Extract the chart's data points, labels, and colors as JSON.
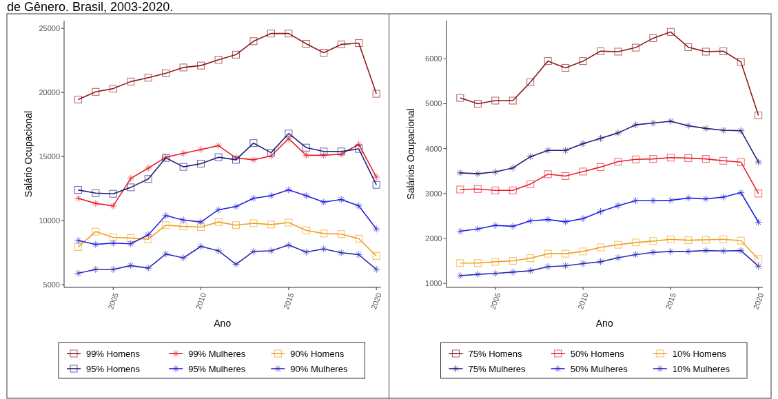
{
  "chart_data": [
    {
      "type": "line",
      "title": "de Gênero. Brasil, 2003-2020.",
      "xlabel": "Ano",
      "ylabel": "Salário Ocupacional",
      "x": [
        2003,
        2004,
        2005,
        2006,
        2007,
        2008,
        2009,
        2010,
        2011,
        2012,
        2013,
        2014,
        2015,
        2016,
        2017,
        2018,
        2019,
        2020
      ],
      "xlim": [
        2002.2,
        2020.25
      ],
      "xticks": [
        2005,
        2010,
        2015,
        2020
      ],
      "ylim": [
        4800,
        25600
      ],
      "yticks": [
        5000,
        10000,
        15000,
        20000,
        25000
      ],
      "grid": false,
      "legend": "bottom",
      "line_style": "solid",
      "series": [
        {
          "name": "99% Homens",
          "color": "#8b1a1a",
          "marker": "square",
          "values": [
            19450,
            20050,
            20300,
            20850,
            21150,
            21500,
            21950,
            22100,
            22550,
            22950,
            24000,
            24600,
            24600,
            23800,
            23100,
            23750,
            23850,
            19900
          ]
        },
        {
          "name": "99% Mulheres",
          "color": "#e8202a",
          "marker": "cross",
          "values": [
            11750,
            11350,
            11150,
            13300,
            14100,
            14950,
            15250,
            15550,
            15850,
            14900,
            14750,
            15050,
            16400,
            15100,
            15100,
            15200,
            15950,
            13400
          ]
        },
        {
          "name": "90% Homens",
          "color": "#f0a020",
          "marker": "square",
          "values": [
            7950,
            9150,
            8700,
            8650,
            8550,
            9650,
            9550,
            9500,
            9900,
            9650,
            9800,
            9700,
            9850,
            9250,
            9000,
            8950,
            8600,
            7250
          ]
        },
        {
          "name": "95% Homens",
          "color": "#1f1f7a",
          "marker": "square",
          "values": [
            12400,
            12150,
            12100,
            12600,
            13250,
            14900,
            14200,
            14450,
            14950,
            14750,
            16050,
            15300,
            16800,
            15700,
            15400,
            15400,
            15600,
            12800
          ]
        },
        {
          "name": "95% Mulheres",
          "color": "#2020e0",
          "marker": "cross",
          "values": [
            8450,
            8150,
            8250,
            8200,
            8900,
            10400,
            10050,
            9900,
            10850,
            11100,
            11750,
            11950,
            12400,
            11950,
            11450,
            11650,
            11150,
            9350
          ]
        },
        {
          "name": "90% Mulheres",
          "color": "#2a2ab8",
          "marker": "cross",
          "values": [
            5900,
            6200,
            6200,
            6500,
            6300,
            7400,
            7100,
            8000,
            7650,
            6600,
            7600,
            7650,
            8100,
            7550,
            7800,
            7500,
            7350,
            6200
          ]
        }
      ]
    },
    {
      "type": "line",
      "xlabel": "Ano",
      "ylabel": "Salários Ocupacional",
      "x": [
        2003,
        2004,
        2005,
        2006,
        2007,
        2008,
        2009,
        2010,
        2011,
        2012,
        2013,
        2014,
        2015,
        2016,
        2017,
        2018,
        2019,
        2020
      ],
      "xlim": [
        2002.2,
        2020.25
      ],
      "xticks": [
        2005,
        2010,
        2015,
        2020
      ],
      "ylim": [
        910,
        6850
      ],
      "yticks": [
        1000,
        2000,
        3000,
        4000,
        5000,
        6000
      ],
      "grid": false,
      "legend": "bottom",
      "line_style": "solid",
      "series": [
        {
          "name": "75% Homens",
          "color": "#8b1a1a",
          "marker": "square",
          "values": [
            5130,
            5000,
            5070,
            5070,
            5480,
            5950,
            5800,
            5950,
            6170,
            6160,
            6250,
            6460,
            6600,
            6260,
            6160,
            6170,
            5930,
            4740
          ]
        },
        {
          "name": "50% Homens",
          "color": "#e8202a",
          "marker": "square",
          "values": [
            3090,
            3100,
            3070,
            3070,
            3210,
            3430,
            3390,
            3490,
            3590,
            3710,
            3760,
            3770,
            3800,
            3790,
            3770,
            3730,
            3700,
            3000
          ]
        },
        {
          "name": "10% Homens",
          "color": "#f0a020",
          "marker": "square",
          "values": [
            1450,
            1450,
            1480,
            1500,
            1560,
            1660,
            1660,
            1710,
            1800,
            1860,
            1910,
            1940,
            1980,
            1960,
            1970,
            1980,
            1950,
            1540
          ]
        },
        {
          "name": "75% Mulheres",
          "color": "#1f1f7a",
          "marker": "cross",
          "values": [
            3460,
            3440,
            3480,
            3570,
            3820,
            3960,
            3960,
            4110,
            4230,
            4350,
            4530,
            4570,
            4610,
            4510,
            4450,
            4410,
            4400,
            3700
          ]
        },
        {
          "name": "50% Mulheres",
          "color": "#2020e0",
          "marker": "cross",
          "values": [
            2160,
            2210,
            2290,
            2270,
            2390,
            2420,
            2370,
            2440,
            2600,
            2730,
            2840,
            2840,
            2850,
            2900,
            2880,
            2920,
            3020,
            2360
          ]
        },
        {
          "name": "10% Mulheres",
          "color": "#2a2ab8",
          "marker": "cross",
          "values": [
            1170,
            1200,
            1220,
            1250,
            1280,
            1370,
            1390,
            1440,
            1480,
            1570,
            1640,
            1690,
            1710,
            1710,
            1730,
            1720,
            1730,
            1380
          ]
        }
      ]
    }
  ]
}
